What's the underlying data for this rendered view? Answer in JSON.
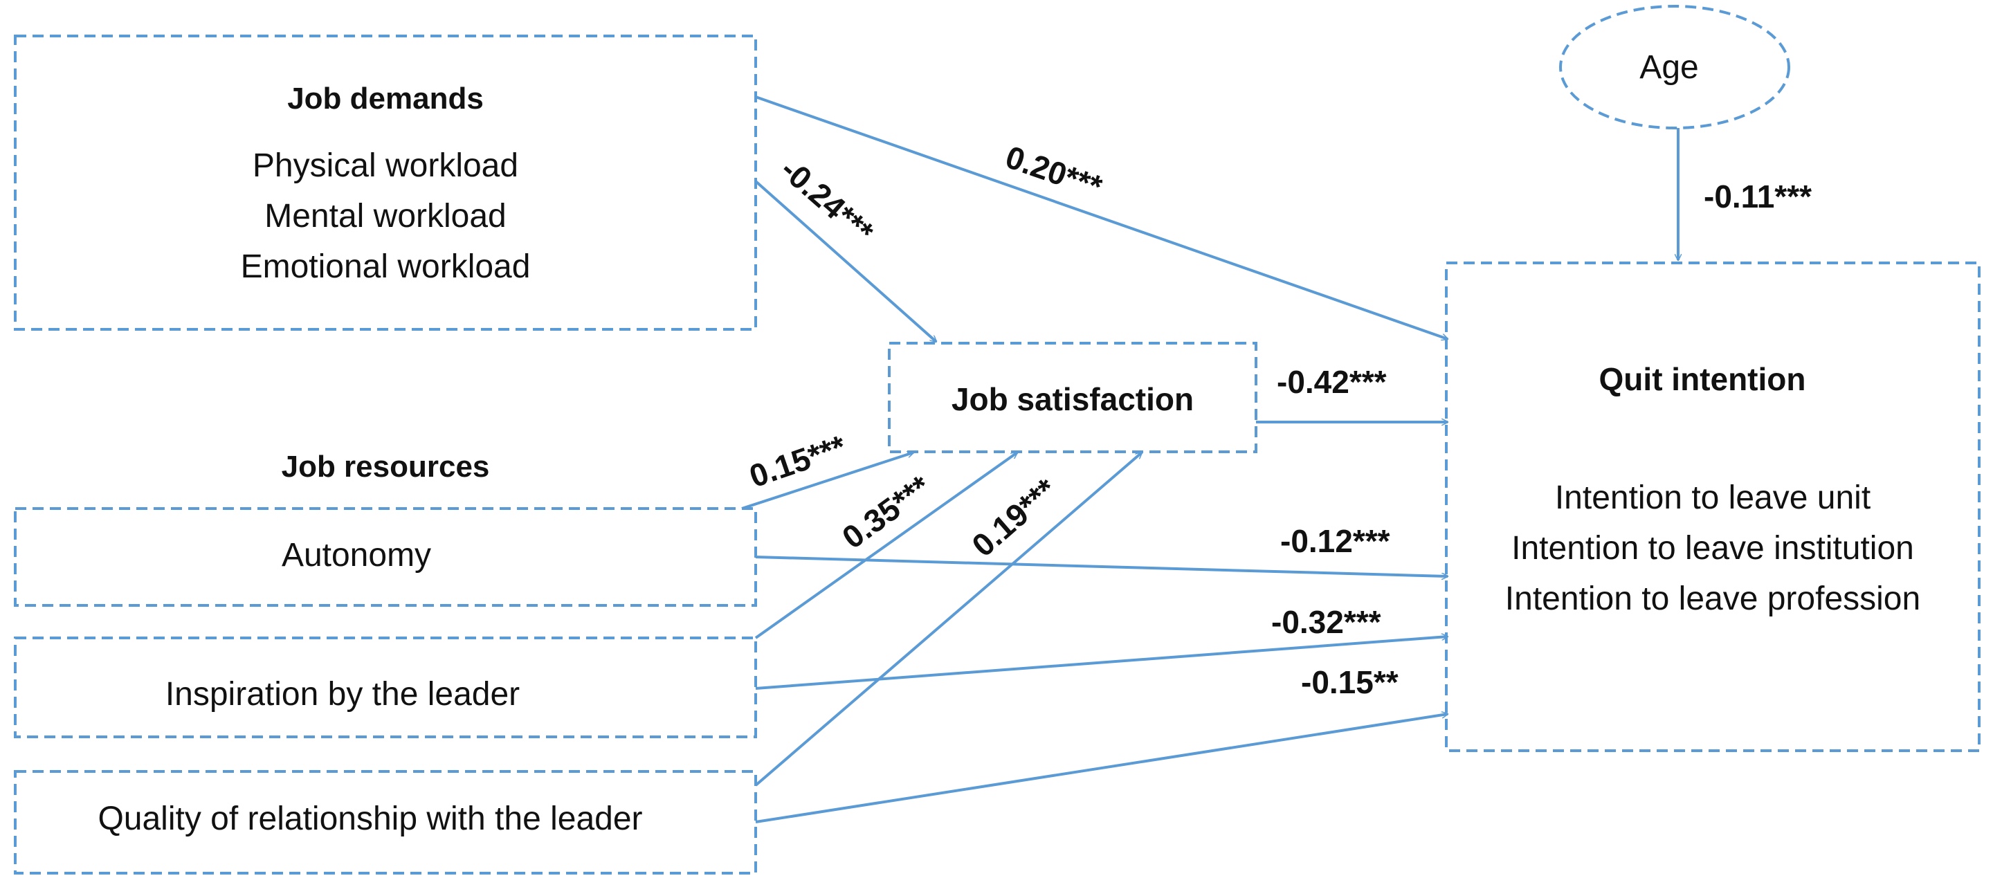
{
  "colors": {
    "accent": "#5b9bd5",
    "text": "#111111"
  },
  "nodes": {
    "job_demands": {
      "title": "Job demands",
      "items": [
        "Physical workload",
        "Mental workload",
        "Emotional workload"
      ]
    },
    "job_resources_heading": "Job resources",
    "autonomy": "Autonomy",
    "inspiration": "Inspiration by the leader",
    "quality": "Quality of relationship with the leader",
    "job_satisfaction": "Job satisfaction",
    "age": "Age",
    "quit_intention": {
      "title": "Quit intention",
      "items": [
        "Intention to leave unit",
        "Intention to leave institution",
        "Intention to leave profession"
      ]
    }
  },
  "paths": {
    "demands_to_quit": "0.20***",
    "demands_to_satisfaction": "-0.24***",
    "age_to_quit": "-0.11***",
    "satisfaction_to_quit": "-0.42***",
    "autonomy_to_satisfaction": "0.15***",
    "inspiration_to_satisfaction": "0.35***",
    "quality_to_satisfaction": "0.19***",
    "autonomy_to_quit": "-0.12***",
    "inspiration_to_quit": "-0.32***",
    "quality_to_quit": "-0.15**"
  }
}
